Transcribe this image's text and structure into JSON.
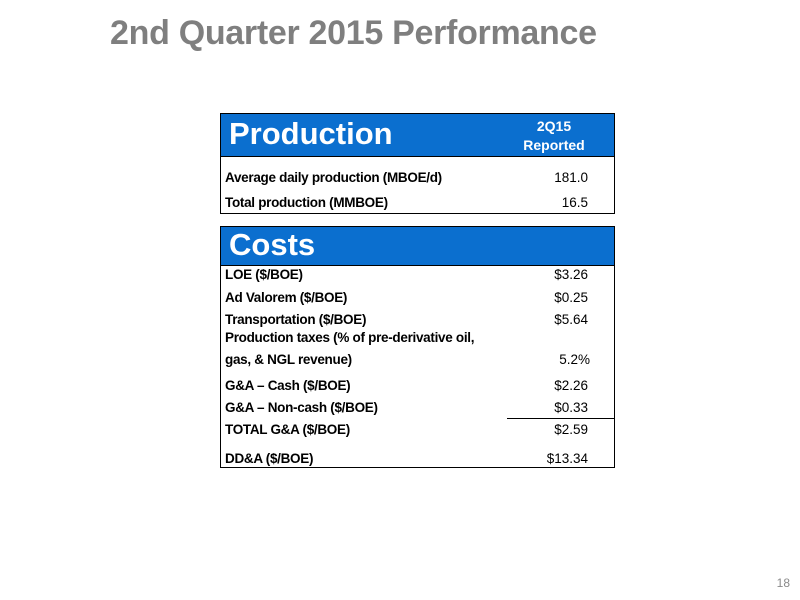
{
  "slide": {
    "title": "2nd Quarter 2015 Performance",
    "page_number": "18"
  },
  "production": {
    "title": "Production",
    "column_header_line1": "2Q15",
    "column_header_line2": "Reported",
    "rows": [
      {
        "label": "Average daily production (MBOE/d)",
        "value": "181.0"
      },
      {
        "label": "Total production (MMBOE)",
        "value": "16.5"
      }
    ]
  },
  "costs": {
    "title": "Costs",
    "rows": [
      {
        "label": "LOE ($/BOE)",
        "value": "$3.26"
      },
      {
        "label": "Ad Valorem ($/BOE)",
        "value": "$0.25"
      },
      {
        "label": "Transportation ($/BOE)",
        "value": "$5.64"
      },
      {
        "label": "Production taxes (% of pre-derivative oil,",
        "label_line2": "gas, & NGL revenue)",
        "value": "5.2%"
      },
      {
        "label": "G&A – Cash ($/BOE)",
        "value": "$2.26"
      },
      {
        "label": "G&A – Non-cash ($/BOE)",
        "value": "$0.33"
      },
      {
        "label": "TOTAL G&A ($/BOE)",
        "value": "$2.59"
      },
      {
        "label": "DD&A ($/BOE)",
        "value": "$13.34"
      }
    ]
  },
  "colors": {
    "header_blue": "#0b6fcf",
    "title_gray": "#7f7f7f"
  }
}
